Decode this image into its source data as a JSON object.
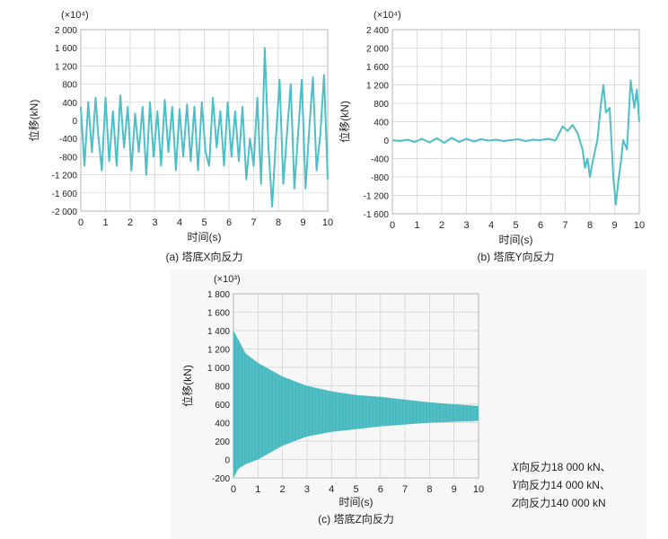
{
  "note": {
    "lines": [
      {
        "axis": "X",
        "text": "向反力18 000 kN、"
      },
      {
        "axis": "Y",
        "text": "向反力14 000 kN、"
      },
      {
        "axis": "Z",
        "text": "向反力140 000 kN"
      }
    ]
  },
  "colors": {
    "series": "#4dbfc6",
    "grid": "#d0d0d0",
    "frame": "#b5b5b5"
  },
  "chart_data": [
    {
      "type": "line",
      "caption": "(a) 塔底X向反力",
      "multiplier": "(×10⁴)",
      "xlabel": "时间(s)",
      "ylabel": "位移(kN)",
      "xlim": [
        0,
        10
      ],
      "ylim": [
        -2000,
        2000
      ],
      "xticks": [
        "0",
        "1",
        "2",
        "3",
        "4",
        "5",
        "6",
        "7",
        "8",
        "9",
        "10"
      ],
      "yticks": [
        "-2 000",
        "-1 600",
        "-1 200",
        "-800",
        "-400",
        "0",
        "400",
        "800",
        "1 200",
        "1 600",
        "2 000"
      ],
      "series": [
        {
          "x": [
            0,
            0.15,
            0.3,
            0.45,
            0.6,
            0.7,
            0.85,
            1.0,
            1.15,
            1.3,
            1.45,
            1.6,
            1.75,
            1.9,
            2.05,
            2.2,
            2.35,
            2.5,
            2.65,
            2.8,
            2.95,
            3.1,
            3.25,
            3.4,
            3.55,
            3.7,
            3.85,
            4.0,
            4.15,
            4.3,
            4.45,
            4.6,
            4.75,
            4.9,
            5.05,
            5.2,
            5.35,
            5.5,
            5.65,
            5.8,
            5.95,
            6.1,
            6.25,
            6.4,
            6.55,
            6.7,
            6.85,
            7.0,
            7.15,
            7.3,
            7.45,
            7.6,
            7.75,
            7.9,
            8.05,
            8.2,
            8.35,
            8.5,
            8.65,
            8.8,
            8.95,
            9.1,
            9.25,
            9.4,
            9.55,
            9.7,
            9.85,
            10.0
          ],
          "y": [
            300,
            -1000,
            400,
            -700,
            500,
            -300,
            -1100,
            500,
            -900,
            200,
            -1000,
            550,
            -600,
            300,
            -1100,
            150,
            -700,
            300,
            -1200,
            400,
            -800,
            200,
            -1000,
            450,
            -700,
            300,
            -1100,
            250,
            -800,
            350,
            -900,
            300,
            -1100,
            400,
            -700,
            -1000,
            500,
            -600,
            200,
            -1000,
            400,
            -800,
            200,
            -900,
            300,
            -1300,
            -400,
            -1000,
            500,
            -1400,
            1600,
            -600,
            -1900,
            -400,
            900,
            -1400,
            -300,
            800,
            -1500,
            -300,
            900,
            -1500,
            -200,
            950,
            -1100,
            -300,
            1000,
            -1300
          ]
        }
      ]
    },
    {
      "type": "line",
      "caption": "(b) 塔底Y向反力",
      "multiplier": "(×10⁴)",
      "xlabel": "时间(s)",
      "ylabel": "位移(kN)",
      "xlim": [
        0,
        10
      ],
      "ylim": [
        -1600,
        2400
      ],
      "xticks": [
        "0",
        "1",
        "2",
        "3",
        "4",
        "5",
        "6",
        "7",
        "8",
        "9",
        "10"
      ],
      "yticks": [
        "-1 600",
        "-1 200",
        "-800",
        "-400",
        "0",
        "400",
        "800",
        "1 200",
        "1 600",
        "2 000",
        "2 400"
      ],
      "series": [
        {
          "x": [
            0,
            0.3,
            0.6,
            0.9,
            1.2,
            1.5,
            1.8,
            2.1,
            2.4,
            2.7,
            3.0,
            3.3,
            3.6,
            3.9,
            4.2,
            4.5,
            4.8,
            5.1,
            5.4,
            5.7,
            6.0,
            6.3,
            6.6,
            6.9,
            7.1,
            7.3,
            7.5,
            7.7,
            7.8,
            7.9,
            8.0,
            8.1,
            8.3,
            8.45,
            8.55,
            8.65,
            8.8,
            8.95,
            9.05,
            9.15,
            9.25,
            9.35,
            9.5,
            9.65,
            9.8,
            9.9,
            10.0
          ],
          "y": [
            0,
            -20,
            10,
            -40,
            30,
            -50,
            40,
            -60,
            50,
            -40,
            30,
            -30,
            20,
            -10,
            10,
            -20,
            0,
            20,
            -20,
            10,
            0,
            30,
            -10,
            300,
            200,
            330,
            150,
            -200,
            -600,
            -400,
            -800,
            -500,
            0,
            800,
            1200,
            600,
            700,
            -800,
            -1400,
            -900,
            -500,
            0,
            -200,
            1300,
            700,
            1100,
            400
          ]
        }
      ]
    },
    {
      "type": "area",
      "caption": "(c) 塔底Z向反力",
      "multiplier": "(×10³)",
      "xlabel": "时间(s)",
      "ylabel": "位移(kN)",
      "xlim": [
        0,
        10
      ],
      "ylim": [
        -200,
        1800
      ],
      "xticks": [
        "0",
        "1",
        "2",
        "3",
        "4",
        "5",
        "6",
        "7",
        "8",
        "9",
        "10"
      ],
      "yticks": [
        "-200",
        "0",
        "200",
        "400",
        "600",
        "800",
        "1 000",
        "1 200",
        "1 400",
        "1 600",
        "1 800"
      ],
      "series": [
        {
          "note": "dense oscillation envelope",
          "x": [
            0,
            0.2,
            0.5,
            1.0,
            2.0,
            3.0,
            4.0,
            5.0,
            6.0,
            7.0,
            8.0,
            9.0,
            10.0
          ],
          "upper": [
            1400,
            1300,
            1150,
            1050,
            900,
            800,
            740,
            700,
            680,
            650,
            620,
            600,
            580
          ],
          "lower": [
            -200,
            -100,
            -50,
            0,
            150,
            250,
            300,
            330,
            360,
            380,
            400,
            410,
            420
          ]
        }
      ]
    }
  ]
}
